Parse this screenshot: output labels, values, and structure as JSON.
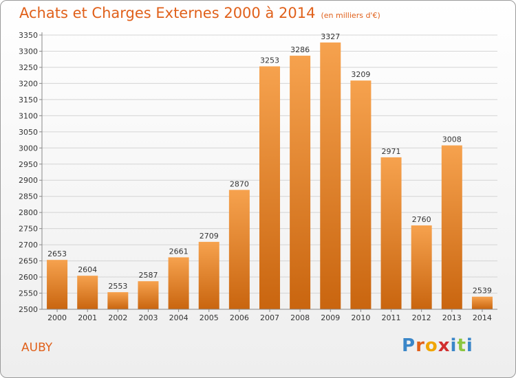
{
  "title": "Achats et Charges Externes 2000 à 2014",
  "subtitle": "(en milliers d'€)",
  "commune": "AUBY",
  "logo": {
    "letters": [
      "P",
      "r",
      "o",
      "x",
      "i",
      "t",
      "i"
    ],
    "colors": [
      "#3a86c8",
      "#e0601a",
      "#f0a500",
      "#d12f2f",
      "#3a86c8",
      "#8cc63f",
      "#3a86c8"
    ]
  },
  "colors": {
    "bar_top": "#f6a24e",
    "bar_bottom": "#c9650f",
    "grid": "#d4d4d4",
    "axis": "#888888",
    "text": "#333333",
    "accent": "#e0601a"
  },
  "chart_data": {
    "type": "bar",
    "title": "Achats et Charges Externes 2000 à 2014",
    "xlabel": "",
    "ylabel": "",
    "categories": [
      "2000",
      "2001",
      "2002",
      "2003",
      "2004",
      "2005",
      "2006",
      "2007",
      "2008",
      "2009",
      "2010",
      "2011",
      "2012",
      "2013",
      "2014"
    ],
    "values": [
      2653,
      2604,
      2553,
      2587,
      2661,
      2709,
      2870,
      3253,
      3286,
      3327,
      3209,
      2971,
      2760,
      3008,
      2539
    ],
    "ylim": [
      2500,
      3350
    ],
    "yticks": [
      2500,
      2550,
      2600,
      2650,
      2700,
      2750,
      2800,
      2850,
      2900,
      2950,
      3000,
      3050,
      3100,
      3150,
      3200,
      3250,
      3300,
      3350
    ],
    "grid": true
  }
}
